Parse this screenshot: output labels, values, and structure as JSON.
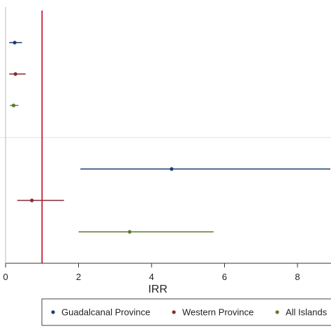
{
  "chart_data": {
    "type": "scatter",
    "subtype": "forest-plot",
    "xlabel": "IRR",
    "xlim": [
      0,
      8.9
    ],
    "x_ticks": [
      0,
      2,
      4,
      6,
      8
    ],
    "reference_line": {
      "x": 1,
      "color": "#c0203a"
    },
    "grid": false,
    "legend_position": "bottom",
    "groups": [
      {
        "rows": [
          {
            "series": "Guadalcanal Province",
            "estimate": 0.25,
            "ci": [
              0.1,
              0.45
            ]
          },
          {
            "series": "Western Province",
            "estimate": 0.27,
            "ci": [
              0.1,
              0.55
            ]
          },
          {
            "series": "All Islands",
            "estimate": 0.22,
            "ci": [
              0.12,
              0.35
            ]
          }
        ]
      },
      {
        "rows": [
          {
            "series": "Guadalcanal Province",
            "estimate": 4.55,
            "ci": [
              2.05,
              8.9
            ]
          },
          {
            "series": "Western Province",
            "estimate": 0.72,
            "ci": [
              0.32,
              1.6
            ]
          },
          {
            "series": "All Islands",
            "estimate": 3.4,
            "ci": [
              2.0,
              5.7
            ]
          }
        ]
      }
    ],
    "series": [
      {
        "name": "Guadalcanal Province",
        "color": "#1b3f6b"
      },
      {
        "name": "Western Province",
        "color": "#8b2a32"
      },
      {
        "name": "All Islands",
        "color": "#5d7a2a"
      }
    ]
  }
}
